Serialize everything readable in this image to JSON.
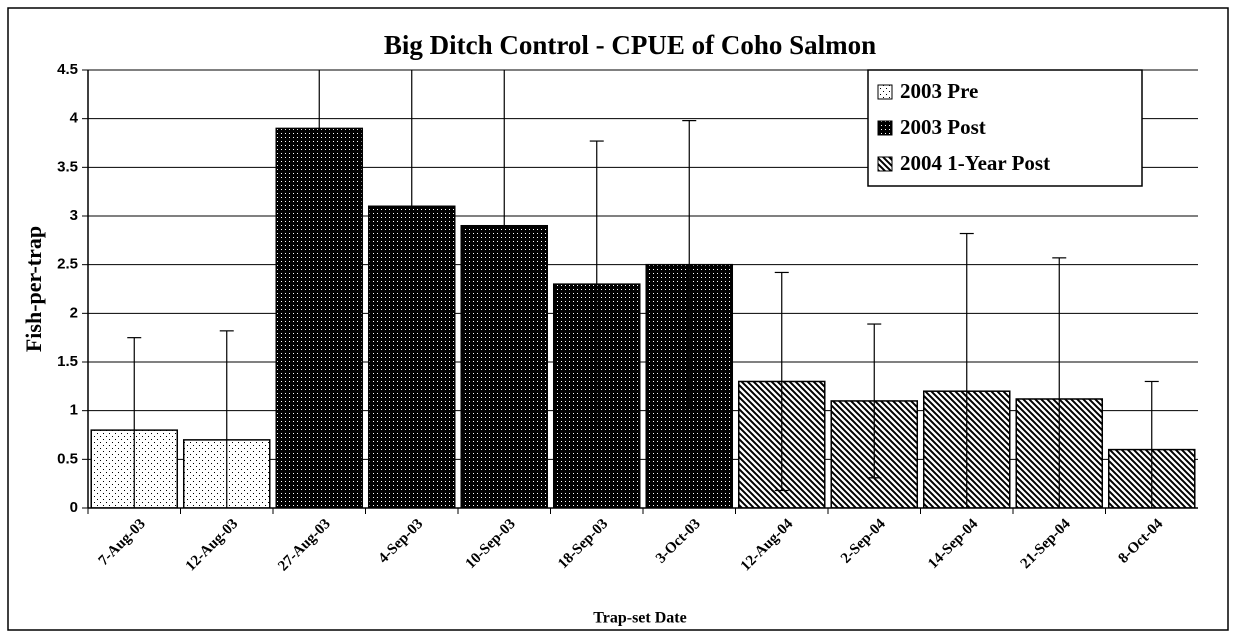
{
  "chart_data": {
    "type": "bar",
    "title": "Big Ditch Control - CPUE of Coho Salmon",
    "x_label": "Trap-set Date",
    "y_label": "Fish-per-trap",
    "categories": [
      "7-Aug-03",
      "12-Aug-03",
      "27-Aug-03",
      "4-Sep-03",
      "10-Sep-03",
      "18-Sep-03",
      "3-Oct-03",
      "12-Aug-04",
      "2-Sep-04",
      "14-Sep-04",
      "21-Sep-04",
      "8-Oct-04"
    ],
    "series": [
      {
        "name": "2003 Pre",
        "color": "#000000",
        "pattern": "sparse-dots",
        "values": [
          0.8,
          0.7,
          null,
          null,
          null,
          null,
          null,
          null,
          null,
          null,
          null,
          null
        ],
        "errors": [
          0.95,
          1.12,
          null,
          null,
          null,
          null,
          null,
          null,
          null,
          null,
          null,
          null
        ]
      },
      {
        "name": "2003 Post",
        "color": "#000000",
        "pattern": "dense-dots",
        "values": [
          null,
          null,
          3.9,
          3.1,
          2.9,
          2.3,
          2.5,
          null,
          null,
          null,
          null,
          null
        ],
        "errors": [
          null,
          null,
          1.8,
          2.2,
          2.6,
          1.47,
          1.48,
          null,
          null,
          null,
          null,
          null
        ]
      },
      {
        "name": "2004 1-Year Post",
        "color": "#000000",
        "pattern": "diagonal",
        "values": [
          null,
          null,
          null,
          null,
          null,
          null,
          null,
          1.3,
          1.1,
          1.2,
          1.12,
          0.6
        ],
        "errors": [
          null,
          null,
          null,
          null,
          null,
          null,
          null,
          1.12,
          0.79,
          1.62,
          1.45,
          0.7
        ]
      }
    ],
    "ylim": [
      0,
      4.5
    ],
    "yticks": [
      0,
      0.5,
      1,
      1.5,
      2,
      2.5,
      3,
      3.5,
      4,
      4.5
    ],
    "grid": true,
    "legend": "upper right"
  }
}
